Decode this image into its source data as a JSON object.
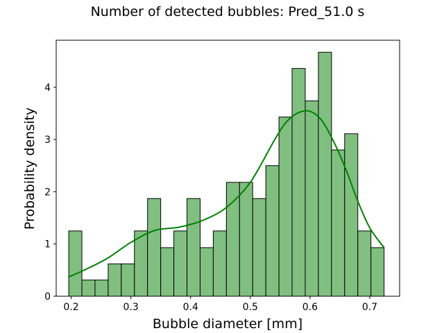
{
  "chart_data": {
    "type": "bar",
    "title": "Number of detected bubbles: Pred_51.0 s",
    "xlabel": "Bubble diameter [mm]",
    "ylabel": "Probability density",
    "xlim": [
      0.175,
      0.75
    ],
    "ylim": [
      0,
      4.9
    ],
    "xticks": [
      "0.2",
      "0.3",
      "0.4",
      "0.5",
      "0.6",
      "0.7"
    ],
    "yticks": [
      "0",
      "1",
      "2",
      "3",
      "4"
    ],
    "bins": [
      {
        "x0": 0.196,
        "x1": 0.218,
        "value": 1.25
      },
      {
        "x0": 0.218,
        "x1": 0.24,
        "value": 0.31
      },
      {
        "x0": 0.24,
        "x1": 0.262,
        "value": 0.31
      },
      {
        "x0": 0.262,
        "x1": 0.284,
        "value": 0.62
      },
      {
        "x0": 0.284,
        "x1": 0.306,
        "value": 0.62
      },
      {
        "x0": 0.306,
        "x1": 0.328,
        "value": 1.25
      },
      {
        "x0": 0.328,
        "x1": 0.35,
        "value": 1.87
      },
      {
        "x0": 0.35,
        "x1": 0.372,
        "value": 0.93
      },
      {
        "x0": 0.372,
        "x1": 0.394,
        "value": 1.25
      },
      {
        "x0": 0.394,
        "x1": 0.416,
        "value": 1.87
      },
      {
        "x0": 0.416,
        "x1": 0.438,
        "value": 0.93
      },
      {
        "x0": 0.438,
        "x1": 0.46,
        "value": 1.25
      },
      {
        "x0": 0.46,
        "x1": 0.482,
        "value": 2.18
      },
      {
        "x0": 0.482,
        "x1": 0.504,
        "value": 2.18
      },
      {
        "x0": 0.504,
        "x1": 0.526,
        "value": 1.87
      },
      {
        "x0": 0.526,
        "x1": 0.548,
        "value": 2.5
      },
      {
        "x0": 0.548,
        "x1": 0.57,
        "value": 3.43
      },
      {
        "x0": 0.57,
        "x1": 0.592,
        "value": 4.36
      },
      {
        "x0": 0.592,
        "x1": 0.614,
        "value": 3.74
      },
      {
        "x0": 0.614,
        "x1": 0.636,
        "value": 4.67
      },
      {
        "x0": 0.636,
        "x1": 0.658,
        "value": 2.8
      },
      {
        "x0": 0.658,
        "x1": 0.68,
        "value": 3.11
      },
      {
        "x0": 0.68,
        "x1": 0.702,
        "value": 1.25
      },
      {
        "x0": 0.702,
        "x1": 0.724,
        "value": 0.93
      }
    ],
    "kde": {
      "x": [
        0.196,
        0.22,
        0.26,
        0.3,
        0.34,
        0.38,
        0.42,
        0.46,
        0.5,
        0.54,
        0.56,
        0.58,
        0.6,
        0.62,
        0.64,
        0.66,
        0.68,
        0.7,
        0.724
      ],
      "y": [
        0.37,
        0.49,
        0.72,
        1.03,
        1.26,
        1.32,
        1.45,
        1.7,
        2.18,
        2.98,
        3.33,
        3.51,
        3.54,
        3.36,
        2.95,
        2.43,
        1.82,
        1.31,
        0.93
      ]
    },
    "bar_fill": "#80bf80",
    "bar_edge": "#000000",
    "kde_color": "#008000",
    "grid": false
  }
}
